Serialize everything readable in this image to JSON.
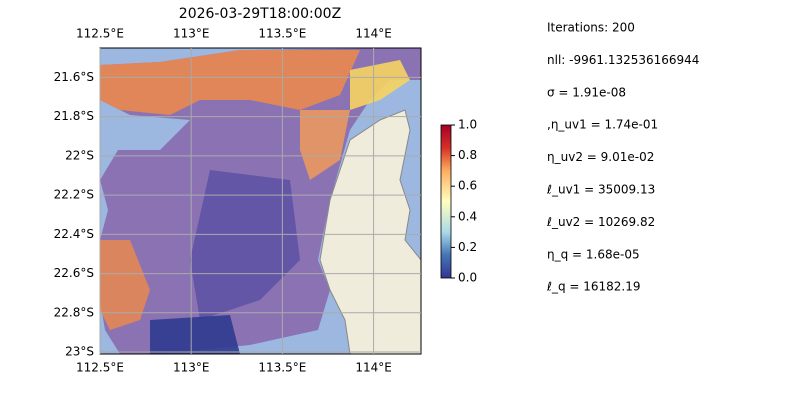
{
  "map": {
    "title": "2026-03-29T18:00:00Z",
    "xlim": [
      112.5,
      114.26
    ],
    "ylim": [
      -21.45,
      -23.01
    ],
    "xticks": [
      {
        "value": 112.5,
        "label": "112.5°E"
      },
      {
        "value": 113,
        "label": "113°E"
      },
      {
        "value": 113.5,
        "label": "113.5°E"
      },
      {
        "value": 114,
        "label": "114°E"
      }
    ],
    "yticks": [
      {
        "value": -21.6,
        "label": "21.6°S"
      },
      {
        "value": -21.8,
        "label": "21.8°S"
      },
      {
        "value": -22,
        "label": "22°S"
      },
      {
        "value": -22.2,
        "label": "22.2°S"
      },
      {
        "value": -22.4,
        "label": "22.4°S"
      },
      {
        "value": -22.6,
        "label": "22.6°S"
      },
      {
        "value": -22.8,
        "label": "22.8°S"
      },
      {
        "value": -23,
        "label": "23°S"
      }
    ],
    "grid": true
  },
  "colorbar": {
    "lim": [
      0,
      1
    ],
    "ticks": [
      {
        "value": 0,
        "label": "0.0"
      },
      {
        "value": 0.2,
        "label": "0.2"
      },
      {
        "value": 0.4,
        "label": "0.4"
      },
      {
        "value": 0.6,
        "label": "0.6"
      },
      {
        "value": 0.8,
        "label": "0.8"
      },
      {
        "value": 1,
        "label": "1.0"
      }
    ]
  },
  "info": [
    "Iterations: 200",
    "nll: -9961.132536166944",
    "σ = 1.91e-08",
    ",η_uv1 = 1.74e-01",
    "η_uv2 = 9.01e-02",
    "ℓ_uv1 = 35009.13",
    "ℓ_uv2 = 10269.82",
    "η_q = 1.68e-05",
    "ℓ_q = 16182.19"
  ]
}
